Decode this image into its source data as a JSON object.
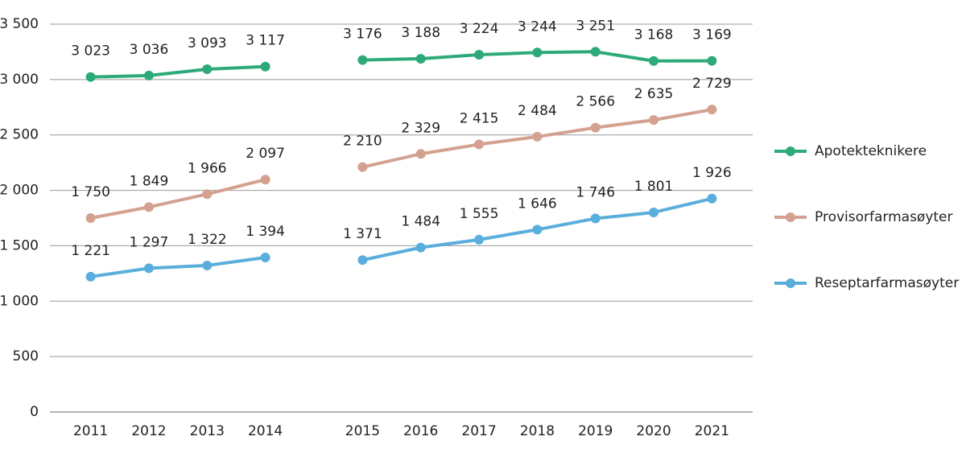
{
  "chart_data": {
    "type": "line",
    "categories": [
      "2011",
      "2012",
      "2013",
      "2014",
      null,
      "2015",
      "2016",
      "2017",
      "2018",
      "2019",
      "2020",
      "2021"
    ],
    "ylim": [
      0,
      3500
    ],
    "yticks": [
      0,
      500,
      {
        "value": 1000,
        "label": "1 000"
      },
      {
        "value": 1500,
        "label": "1 500"
      },
      {
        "value": 2000,
        "label": "2 000"
      },
      {
        "value": 2500,
        "label": "2 500"
      },
      {
        "value": 3000,
        "label": "3 000"
      },
      {
        "value": 3500,
        "label": "3 500"
      }
    ],
    "grid": true,
    "legend": "right",
    "series": [
      {
        "name": "Apotekteknikere",
        "color": "#2eaa7a",
        "values": [
          3023,
          3036,
          3093,
          3117,
          null,
          3176,
          3188,
          3224,
          3244,
          3251,
          3168,
          3169
        ],
        "value_labels": [
          "3 023",
          "3 036",
          "3 093",
          "3 117",
          null,
          "3 176",
          "3 188",
          "3 224",
          "3 244",
          "3 251",
          "3 168",
          "3 169"
        ]
      },
      {
        "name": "Provisorfarmasøyter",
        "color": "#d4a190",
        "values": [
          1750,
          1849,
          1966,
          2097,
          null,
          2210,
          2329,
          2415,
          2484,
          2566,
          2635,
          2729
        ],
        "value_labels": [
          "1 750",
          "1 849",
          "1 966",
          "2 097",
          null,
          "2 210",
          "2 329",
          "2 415",
          "2 484",
          "2 566",
          "2 635",
          "2 729"
        ]
      },
      {
        "name": "Reseptarfarmasøyter",
        "color": "#5aaedc",
        "values": [
          1221,
          1297,
          1322,
          1394,
          null,
          1371,
          1484,
          1555,
          1646,
          1746,
          1801,
          1926
        ],
        "value_labels": [
          "1 221",
          "1 297",
          "1 322",
          "1 394",
          null,
          "1 371",
          "1 484",
          "1 555",
          "1 646",
          "1 746",
          "1 801",
          "1 926"
        ]
      }
    ]
  }
}
